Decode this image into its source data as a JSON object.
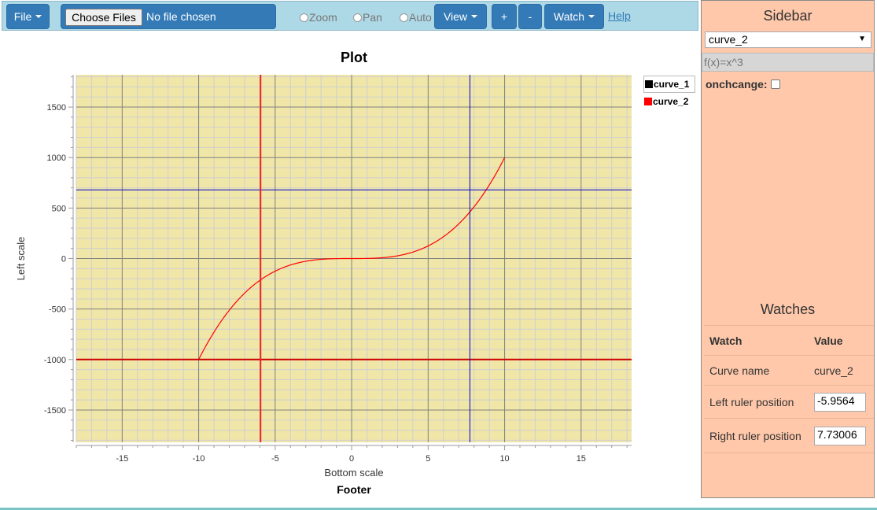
{
  "toolbar": {
    "file_label": "File",
    "choose_files_label": "Choose Files",
    "no_file_text": "No file chosen",
    "mode_options": [
      "Zoom",
      "Pan",
      "Auto"
    ],
    "view_label": "View",
    "zoom_in_label": "+",
    "zoom_out_label": "-",
    "watch_label": "Watch",
    "help_label": "Help"
  },
  "plot": {
    "title": "Plot",
    "footer": "Footer",
    "left_ruler_x": -5.9564,
    "right_ruler_x": 7.73006,
    "bottom_ruler_y": -1000,
    "top_ruler_y": 680
  },
  "legend": {
    "items": [
      {
        "name": "curve_1",
        "color": "#000000"
      },
      {
        "name": "curve_2",
        "color": "#ff0000"
      }
    ]
  },
  "chart_data": {
    "type": "line",
    "title": "Plot",
    "xlabel": "Bottom scale",
    "ylabel": "Left scale",
    "footer": "Footer",
    "xlim": [
      -18,
      18.3
    ],
    "ylim": [
      -1820,
      1820
    ],
    "xticks": [
      -15,
      -10,
      -5,
      0,
      5,
      10,
      15
    ],
    "yticks": [
      -1500,
      -1000,
      -500,
      0,
      500,
      1000,
      1500
    ],
    "grid": true,
    "background": "#f0e6a8",
    "series": [
      {
        "name": "curve_2",
        "color": "#ff0000",
        "function": "x^3",
        "x_range": [
          -10,
          10
        ]
      }
    ]
  },
  "sidebar": {
    "title": "Sidebar",
    "selected_curve": "curve_2",
    "function_placeholder": "f(x)=x^3",
    "onchange_label": "onchcange:",
    "watches_title": "Watches",
    "watch_headers": [
      "Watch",
      "Value"
    ],
    "watches": [
      {
        "label": "Curve name",
        "value": "curve_2"
      },
      {
        "label": "Left ruler position",
        "value": "-5.9564"
      },
      {
        "label": "Right ruler position",
        "value": "7.73006"
      }
    ]
  }
}
